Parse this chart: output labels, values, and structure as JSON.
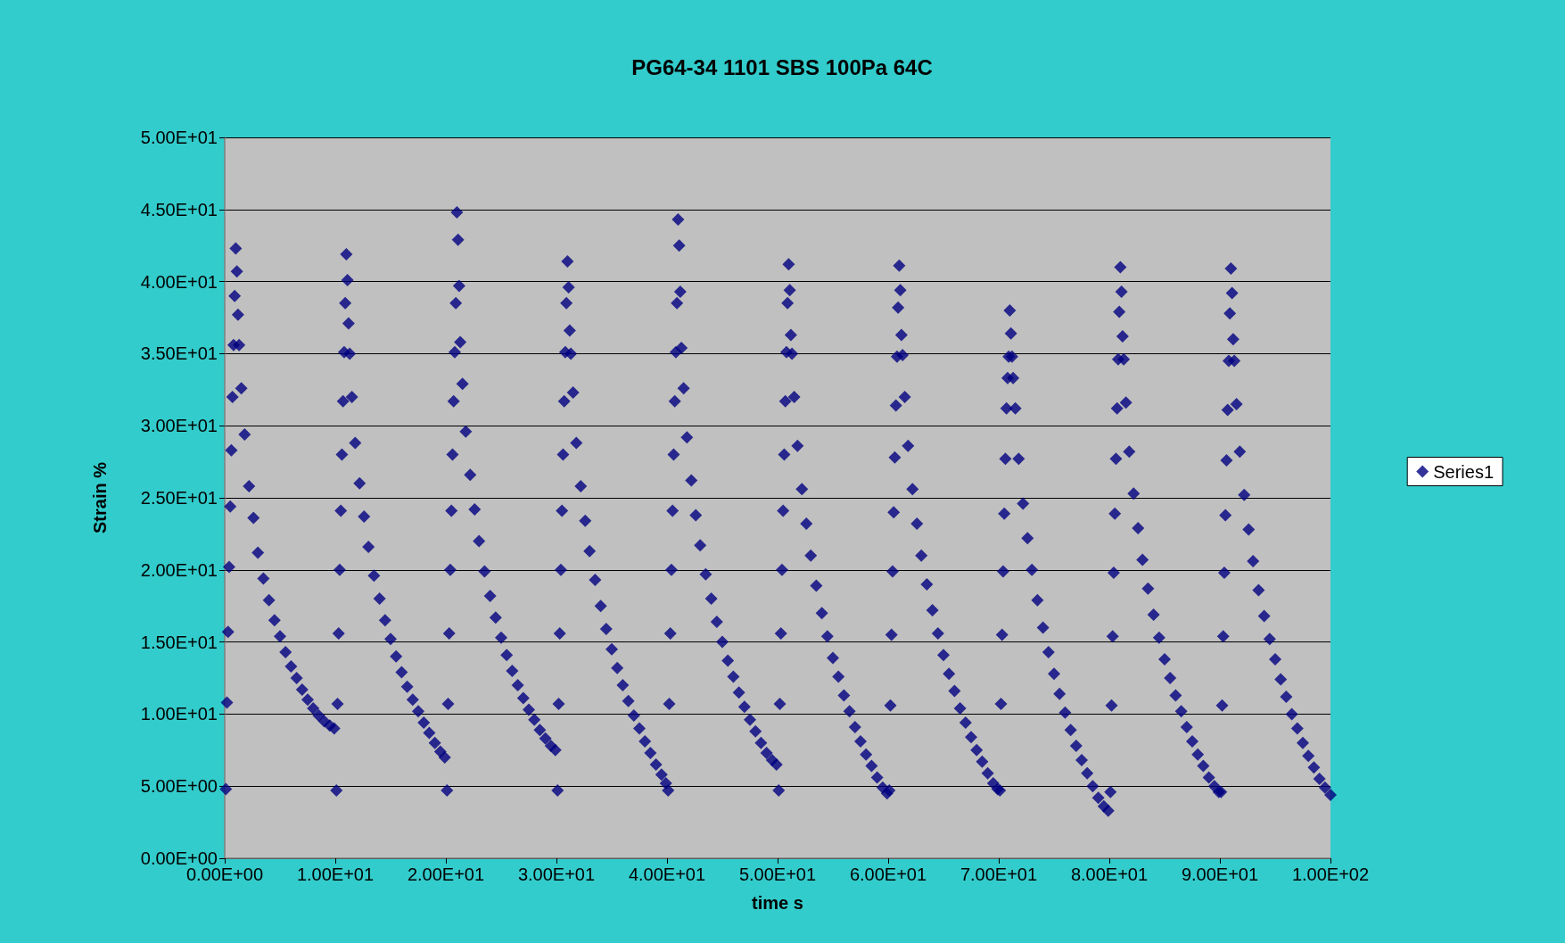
{
  "chart_data": {
    "type": "scatter",
    "title": "PG64-34 1101 SBS 100Pa 64C",
    "xlabel": "time s",
    "ylabel": "Strain %",
    "xlim": [
      0,
      100
    ],
    "ylim": [
      0,
      50
    ],
    "xticks": [
      {
        "value": 0,
        "label": "0.00E+00"
      },
      {
        "value": 10,
        "label": "1.00E+01"
      },
      {
        "value": 20,
        "label": "2.00E+01"
      },
      {
        "value": 30,
        "label": "3.00E+01"
      },
      {
        "value": 40,
        "label": "4.00E+01"
      },
      {
        "value": 50,
        "label": "5.00E+01"
      },
      {
        "value": 60,
        "label": "6.00E+01"
      },
      {
        "value": 70,
        "label": "7.00E+01"
      },
      {
        "value": 80,
        "label": "8.00E+01"
      },
      {
        "value": 90,
        "label": "9.00E+01"
      },
      {
        "value": 100,
        "label": "1.00E+02"
      }
    ],
    "yticks": [
      {
        "value": 0,
        "label": "0.00E+00"
      },
      {
        "value": 5,
        "label": "5.00E+00"
      },
      {
        "value": 10,
        "label": "1.00E+01"
      },
      {
        "value": 15,
        "label": "1.50E+01"
      },
      {
        "value": 20,
        "label": "2.00E+01"
      },
      {
        "value": 25,
        "label": "2.50E+01"
      },
      {
        "value": 30,
        "label": "3.00E+01"
      },
      {
        "value": 35,
        "label": "3.50E+01"
      },
      {
        "value": 40,
        "label": "4.00E+01"
      },
      {
        "value": 45,
        "label": "4.50E+01"
      },
      {
        "value": 50,
        "label": "5.00E+01"
      }
    ],
    "grid": "y",
    "legend": "right",
    "marker": "diamond",
    "series": [
      {
        "name": "Series1",
        "color": "#000080",
        "x": [
          0.1,
          0.2,
          0.3,
          0.4,
          0.5,
          0.6,
          0.7,
          0.8,
          0.9,
          1.0,
          1.1,
          1.2,
          1.3,
          1.5,
          1.8,
          2.2,
          2.6,
          3.0,
          3.5,
          4.0,
          4.5,
          5.0,
          5.5,
          6.0,
          6.5,
          7.0,
          7.5,
          8.0,
          8.5,
          9.0,
          9.5,
          9.9,
          10.1,
          10.2,
          10.3,
          10.4,
          10.5,
          10.6,
          10.7,
          10.8,
          10.9,
          11.0,
          11.1,
          11.2,
          11.3,
          11.5,
          11.8,
          12.2,
          12.6,
          13.0,
          13.5,
          14.0,
          14.5,
          15.0,
          15.5,
          16.0,
          16.5,
          17.0,
          17.5,
          18.0,
          18.5,
          19.0,
          19.5,
          19.9,
          20.1,
          20.2,
          20.3,
          20.4,
          20.5,
          20.6,
          20.7,
          20.8,
          20.9,
          21.0,
          21.1,
          21.2,
          21.3,
          21.5,
          21.8,
          22.2,
          22.6,
          23.0,
          23.5,
          24.0,
          24.5,
          25.0,
          25.5,
          26.0,
          26.5,
          27.0,
          27.5,
          28.0,
          28.5,
          29.0,
          29.5,
          29.9,
          30.1,
          30.2,
          30.3,
          30.4,
          30.5,
          30.6,
          30.7,
          30.8,
          30.9,
          31.0,
          31.1,
          31.2,
          31.3,
          31.5,
          31.8,
          32.2,
          32.6,
          33.0,
          33.5,
          34.0,
          34.5,
          35.0,
          35.5,
          36.0,
          36.5,
          37.0,
          37.5,
          38.0,
          38.5,
          39.0,
          39.5,
          39.9,
          40.1,
          40.2,
          40.3,
          40.4,
          40.5,
          40.6,
          40.7,
          40.8,
          40.9,
          41.0,
          41.1,
          41.2,
          41.3,
          41.5,
          41.8,
          42.2,
          42.6,
          43.0,
          43.5,
          44.0,
          44.5,
          45.0,
          45.5,
          46.0,
          46.5,
          47.0,
          47.5,
          48.0,
          48.5,
          49.0,
          49.5,
          49.9,
          50.1,
          50.2,
          50.3,
          50.4,
          50.5,
          50.6,
          50.7,
          50.8,
          50.9,
          51.0,
          51.1,
          51.2,
          51.3,
          51.5,
          51.8,
          52.2,
          52.6,
          53.0,
          53.5,
          54.0,
          54.5,
          55.0,
          55.5,
          56.0,
          56.5,
          57.0,
          57.5,
          58.0,
          58.5,
          59.0,
          59.5,
          59.9,
          60.1,
          60.2,
          60.3,
          60.4,
          60.5,
          60.6,
          60.7,
          60.8,
          60.9,
          61.0,
          61.1,
          61.2,
          61.3,
          61.5,
          61.8,
          62.2,
          62.6,
          63.0,
          63.5,
          64.0,
          64.5,
          65.0,
          65.5,
          66.0,
          66.5,
          67.0,
          67.5,
          68.0,
          68.5,
          69.0,
          69.5,
          69.9,
          70.1,
          70.2,
          70.3,
          70.4,
          70.5,
          70.6,
          70.7,
          70.8,
          70.9,
          71.0,
          71.1,
          71.2,
          71.3,
          71.5,
          71.8,
          72.2,
          72.6,
          73.0,
          73.5,
          74.0,
          74.5,
          75.0,
          75.5,
          76.0,
          76.5,
          77.0,
          77.5,
          78.0,
          78.5,
          79.0,
          79.5,
          79.9,
          80.1,
          80.2,
          80.3,
          80.4,
          80.5,
          80.6,
          80.7,
          80.8,
          80.9,
          81.0,
          81.1,
          81.2,
          81.3,
          81.5,
          81.8,
          82.2,
          82.6,
          83.0,
          83.5,
          84.0,
          84.5,
          85.0,
          85.5,
          86.0,
          86.5,
          87.0,
          87.5,
          88.0,
          88.5,
          89.0,
          89.5,
          89.9,
          90.1,
          90.2,
          90.3,
          90.4,
          90.5,
          90.6,
          90.7,
          90.8,
          90.9,
          91.0,
          91.1,
          91.2,
          91.3,
          91.5,
          91.8,
          92.2,
          92.6,
          93.0,
          93.5,
          94.0,
          94.5,
          95.0,
          95.5,
          96.0,
          96.5,
          97.0,
          97.5,
          98.0,
          98.5,
          99.0,
          99.5,
          100.0
        ],
        "values": [
          4.8,
          10.8,
          15.7,
          20.2,
          24.4,
          28.3,
          32.0,
          35.6,
          39.0,
          42.3,
          40.7,
          37.7,
          35.6,
          32.6,
          29.4,
          25.8,
          23.6,
          21.2,
          19.4,
          17.9,
          16.5,
          15.4,
          14.3,
          13.3,
          12.5,
          11.7,
          11.0,
          10.4,
          9.9,
          9.5,
          9.2,
          9.0,
          4.7,
          10.7,
          15.6,
          20.0,
          24.1,
          28.0,
          31.7,
          35.1,
          38.5,
          41.9,
          40.1,
          37.1,
          35.0,
          32.0,
          28.8,
          26.0,
          23.7,
          21.6,
          19.6,
          18.0,
          16.5,
          15.2,
          14.0,
          12.9,
          11.9,
          11.0,
          10.2,
          9.4,
          8.7,
          8.0,
          7.4,
          7.0,
          4.7,
          10.7,
          15.6,
          20.0,
          24.1,
          28.0,
          31.7,
          35.1,
          38.5,
          44.8,
          42.9,
          39.7,
          35.8,
          32.9,
          29.6,
          26.6,
          24.2,
          22.0,
          19.9,
          18.2,
          16.7,
          15.3,
          14.1,
          13.0,
          12.0,
          11.1,
          10.3,
          9.6,
          8.9,
          8.3,
          7.8,
          7.5,
          4.7,
          10.7,
          15.6,
          20.0,
          24.1,
          28.0,
          31.7,
          35.1,
          38.5,
          41.4,
          39.6,
          36.6,
          35.0,
          32.3,
          28.8,
          25.8,
          23.4,
          21.3,
          19.3,
          17.5,
          15.9,
          14.5,
          13.2,
          12.0,
          10.9,
          9.9,
          9.0,
          8.1,
          7.3,
          6.5,
          5.8,
          5.2,
          4.7,
          10.7,
          15.6,
          20.0,
          24.1,
          28.0,
          31.7,
          35.1,
          38.5,
          44.3,
          42.5,
          39.3,
          35.4,
          32.6,
          29.2,
          26.2,
          23.8,
          21.7,
          19.7,
          18.0,
          16.4,
          15.0,
          13.7,
          12.6,
          11.5,
          10.5,
          9.6,
          8.8,
          8.0,
          7.3,
          6.8,
          6.5,
          4.7,
          10.7,
          15.6,
          20.0,
          24.1,
          28.0,
          31.7,
          35.1,
          38.5,
          41.2,
          39.4,
          36.3,
          35.0,
          32.0,
          28.6,
          25.6,
          23.2,
          21.0,
          18.9,
          17.0,
          15.4,
          13.9,
          12.6,
          11.3,
          10.2,
          9.1,
          8.1,
          7.2,
          6.4,
          5.6,
          4.9,
          4.5,
          4.7,
          10.6,
          15.5,
          19.9,
          24.0,
          27.8,
          31.4,
          34.8,
          38.2,
          41.1,
          39.4,
          36.3,
          34.9,
          32.0,
          28.6,
          25.6,
          23.2,
          21.0,
          19.0,
          17.2,
          15.6,
          14.1,
          12.8,
          11.6,
          10.4,
          9.4,
          8.4,
          7.5,
          6.7,
          5.9,
          5.2,
          4.8,
          4.7,
          10.7,
          15.5,
          19.9,
          23.9,
          27.7,
          31.2,
          33.3,
          34.8,
          38.0,
          36.4,
          34.8,
          33.3,
          31.2,
          27.7,
          24.6,
          22.2,
          20.0,
          17.9,
          16.0,
          14.3,
          12.8,
          11.4,
          10.1,
          8.9,
          7.8,
          6.8,
          5.9,
          5.0,
          4.2,
          3.6,
          3.3,
          4.6,
          10.6,
          15.4,
          19.8,
          23.9,
          27.7,
          31.2,
          34.6,
          37.9,
          41.0,
          39.3,
          36.2,
          34.6,
          31.6,
          28.2,
          25.3,
          22.9,
          20.7,
          18.7,
          16.9,
          15.3,
          13.8,
          12.5,
          11.3,
          10.2,
          9.1,
          8.1,
          7.2,
          6.4,
          5.6,
          5.0,
          4.6,
          4.6,
          10.6,
          15.4,
          19.8,
          23.8,
          27.6,
          31.1,
          34.5,
          37.8,
          40.9,
          39.2,
          36.0,
          34.5,
          31.5,
          28.2,
          25.2,
          22.8,
          20.6,
          18.6,
          16.8,
          15.2,
          13.8,
          12.4,
          11.2,
          10.0,
          9.0,
          8.0,
          7.1,
          6.3,
          5.5,
          4.9,
          4.4
        ]
      }
    ]
  }
}
